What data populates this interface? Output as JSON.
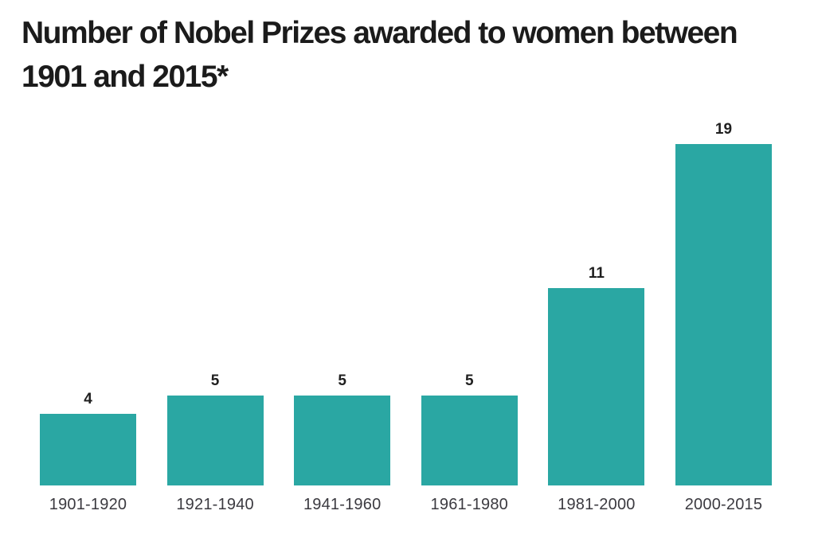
{
  "title": {
    "line1": "Number of Nobel Prizes awarded to women between",
    "line2": "1901 and 2015*"
  },
  "chart_data": {
    "type": "bar",
    "title": "Number of Nobel Prizes awarded to women between 1901 and 2015*",
    "categories": [
      "1901-1920",
      "1921-1940",
      "1941-1960",
      "1961-1980",
      "1981-2000",
      "2000-2015"
    ],
    "values": [
      4,
      5,
      5,
      5,
      11,
      19
    ],
    "xlabel": "",
    "ylabel": "",
    "ylim": [
      0,
      20
    ],
    "grid": false,
    "legend": "none",
    "value_labels": "above-bars",
    "bar_color": "#2aa7a3",
    "value_label_color": "#1f1f1f",
    "category_label_color": "#3b3a40",
    "background_color": "#ffffff"
  }
}
